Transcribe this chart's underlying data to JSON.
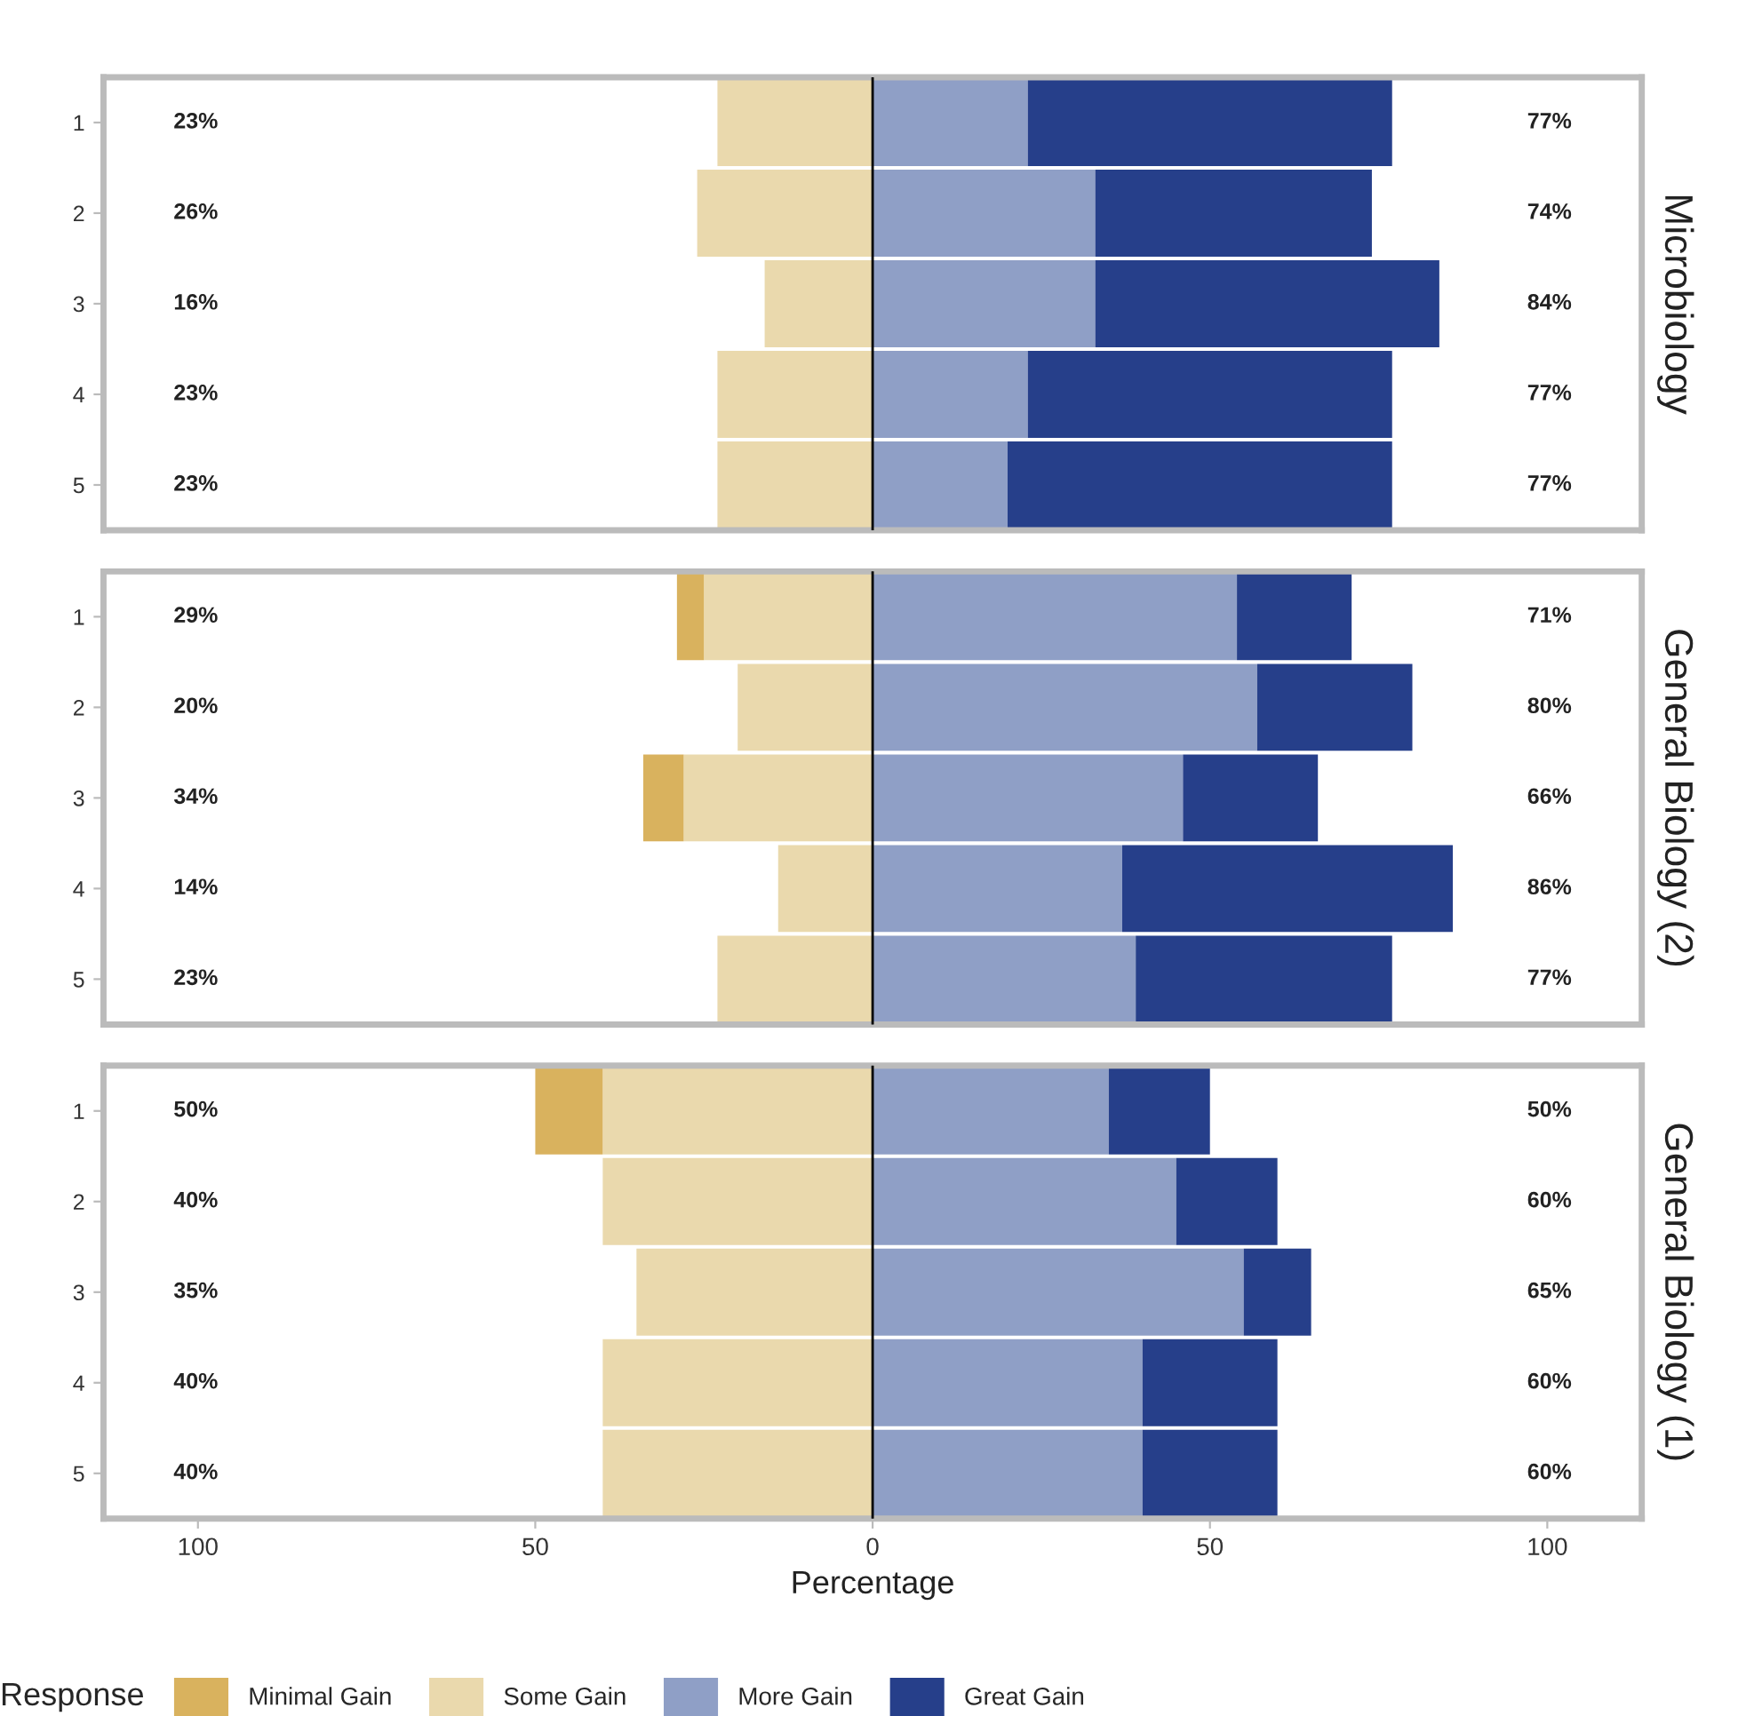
{
  "chart_data": [
    {
      "type": "bar",
      "orientation": "horizontal",
      "stacked": true,
      "title": "Microbiology",
      "categories": [
        "1",
        "2",
        "3",
        "4",
        "5"
      ],
      "series": [
        {
          "color": "#ead9ad",
          "values": [
            -23,
            -26,
            -16,
            -23,
            -23
          ]
        },
        {
          "color": "#8f9fc6",
          "values": [
            23,
            33,
            33,
            23,
            20
          ]
        },
        {
          "color": "#263f8a",
          "values": [
            54,
            41,
            51,
            54,
            57
          ]
        }
      ],
      "xlim": [
        -114,
        114
      ],
      "tick_labels": "y",
      "grid": false,
      "ref_lines": [
        {
          "axis": "x",
          "value": 0,
          "color": "#000000"
        }
      ],
      "annotations": [
        "23%",
        "26%",
        "16%",
        "23%",
        "23%",
        "77%",
        "74%",
        "84%",
        "77%",
        "77%"
      ]
    },
    {
      "type": "bar",
      "orientation": "horizontal",
      "stacked": true,
      "title": "General Biology (2)",
      "categories": [
        "1",
        "2",
        "3",
        "4",
        "5"
      ],
      "series": [
        {
          "color": "#ead9ad",
          "values": [
            -25,
            -20,
            -28,
            -14,
            -23
          ]
        },
        {
          "color": "#d9b25e",
          "values": [
            -4,
            null,
            -6,
            null,
            null
          ]
        },
        {
          "color": "#8f9fc6",
          "values": [
            54,
            57,
            46,
            37,
            39
          ]
        },
        {
          "color": "#263f8a",
          "values": [
            17,
            23,
            20,
            49,
            38
          ]
        }
      ],
      "xlim": [
        -114,
        114
      ],
      "tick_labels": "y",
      "grid": false,
      "ref_lines": [
        {
          "axis": "x",
          "value": 0,
          "color": "#000000"
        }
      ],
      "annotations": [
        "29%",
        "20%",
        "34%",
        "14%",
        "23%",
        "71%",
        "80%",
        "66%",
        "86%",
        "77%"
      ]
    },
    {
      "type": "bar",
      "orientation": "horizontal",
      "stacked": true,
      "title": "General Biology (1)",
      "xlabel": "Percentage",
      "legend_title": "Response",
      "legend": "bottom",
      "categories": [
        "1",
        "2",
        "3",
        "4",
        "5"
      ],
      "series": [
        {
          "name": "Some Gain",
          "color": "#ead9ad",
          "values": [
            -40,
            -40,
            -35,
            -40,
            -40
          ]
        },
        {
          "name": "Minimal Gain",
          "color": "#d9b25e",
          "values": [
            -10,
            null,
            null,
            null,
            null
          ]
        },
        {
          "name": "More Gain",
          "color": "#8f9fc6",
          "values": [
            35,
            45,
            55,
            40,
            40
          ]
        },
        {
          "name": "Great Gain",
          "color": "#263f8a",
          "values": [
            15,
            15,
            10,
            20,
            20
          ]
        }
      ],
      "xlim": [
        -114,
        114
      ],
      "xticks": [
        {
          "value": -100,
          "label": "100"
        },
        {
          "value": -50,
          "label": "50"
        },
        0,
        50,
        100
      ],
      "grid": false,
      "ref_lines": [
        {
          "axis": "x",
          "value": 0,
          "color": "#000000"
        }
      ],
      "annotations": [
        "50%",
        "40%",
        "35%",
        "40%",
        "40%",
        "50%",
        "60%",
        "65%",
        "60%",
        "60%"
      ]
    }
  ]
}
